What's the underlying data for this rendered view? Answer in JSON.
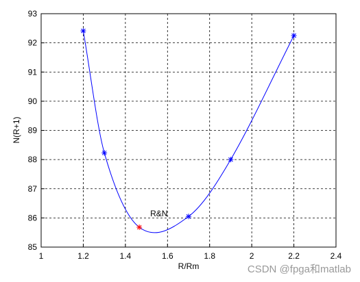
{
  "chart_data": {
    "type": "line",
    "x": [
      1.2,
      1.3,
      1.466,
      1.7,
      1.9,
      2.2
    ],
    "values": [
      92.41,
      88.23,
      85.68,
      86.05,
      88.0,
      92.25
    ],
    "color": "#0000ff",
    "highlight_index": 2,
    "highlight_color": "#ff0000",
    "highlight_label": "R&N",
    "xlabel": "R/Rm",
    "ylabel": "N(R+1)",
    "xlim": [
      1,
      2.4
    ],
    "xticks": [
      1,
      1.2,
      1.4,
      1.6,
      1.8,
      2,
      2.2,
      2.4
    ],
    "ylim": [
      85,
      93
    ],
    "yticks": [
      85,
      86,
      87,
      88,
      89,
      90,
      91,
      92,
      93
    ],
    "grid": true
  },
  "watermark": "CSDN @fpga和matlab"
}
